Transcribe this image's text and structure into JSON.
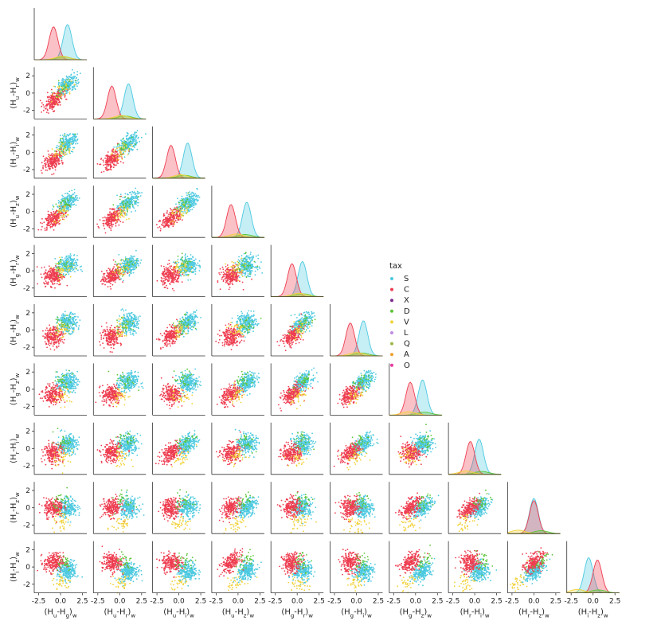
{
  "chart_data": {
    "type": "scatter",
    "kind": "pairplot-corner",
    "diagonal": "kde",
    "variables": [
      {
        "label": "(H_u-H_g)_w",
        "base": "(H",
        "sub1": "u",
        "mid": "-H",
        "sub2": "g",
        "tail": ")",
        "suffix": "w"
      },
      {
        "label": "(H_u-H_r)_w",
        "base": "(H",
        "sub1": "u",
        "mid": "-H",
        "sub2": "r",
        "tail": ")",
        "suffix": "w"
      },
      {
        "label": "(H_u-H_i)_w",
        "base": "(H",
        "sub1": "u",
        "mid": "-H",
        "sub2": "i",
        "tail": ")",
        "suffix": "w"
      },
      {
        "label": "(H_u-H_z)_w",
        "base": "(H",
        "sub1": "u",
        "mid": "-H",
        "sub2": "z",
        "tail": ")",
        "suffix": "w"
      },
      {
        "label": "(H_g-H_r)_w",
        "base": "(H",
        "sub1": "g",
        "mid": "-H",
        "sub2": "r",
        "tail": ")",
        "suffix": "w"
      },
      {
        "label": "(H_g-H_i)_w",
        "base": "(H",
        "sub1": "g",
        "mid": "-H",
        "sub2": "i",
        "tail": ")",
        "suffix": "w"
      },
      {
        "label": "(H_g-H_z)_w",
        "base": "(H",
        "sub1": "g",
        "mid": "-H",
        "sub2": "z",
        "tail": ")",
        "suffix": "w"
      },
      {
        "label": "(H_r-H_i)_w",
        "base": "(H",
        "sub1": "r",
        "mid": "-H",
        "sub2": "i",
        "tail": ")",
        "suffix": "w"
      },
      {
        "label": "(H_r-H_z)_w",
        "base": "(H",
        "sub1": "r",
        "mid": "-H",
        "sub2": "z",
        "tail": ")",
        "suffix": "w"
      },
      {
        "label": "(H_i-H_z)_w",
        "base": "(H",
        "sub1": "i",
        "mid": "-H",
        "sub2": "z",
        "tail": ")",
        "suffix": "w"
      }
    ],
    "axis_range": [
      -3,
      3
    ],
    "x_ticks": [
      "-2.5",
      "0.0",
      "2.5"
    ],
    "y_ticks": [
      "2",
      "0",
      "-2"
    ],
    "y_tick_values": [
      2,
      0,
      -2
    ],
    "x_tick_values": [
      -2.5,
      0.0,
      2.5
    ],
    "grid": false,
    "legend": {
      "title": "tax",
      "placement": "center-right",
      "entries": [
        {
          "name": "S",
          "color": "#4cc9e0"
        },
        {
          "name": "C",
          "color": "#ee3d50"
        },
        {
          "name": "X",
          "color": "#7b2d8e"
        },
        {
          "name": "D",
          "color": "#5cc63a"
        },
        {
          "name": "V",
          "color": "#f2d23a"
        },
        {
          "name": "L",
          "color": "#c08be0"
        },
        {
          "name": "Q",
          "color": "#9cb84a"
        },
        {
          "name": "A",
          "color": "#f0a030"
        },
        {
          "name": "O",
          "color": "#e83aa0"
        }
      ]
    },
    "groups": [
      {
        "name": "S",
        "mean": [
          0.8,
          1.0,
          1.0,
          1.0,
          0.6,
          0.8,
          0.8,
          0.5,
          0.0,
          -0.5
        ],
        "weight": 0.45
      },
      {
        "name": "C",
        "mean": [
          -0.8,
          -0.9,
          -0.9,
          -0.8,
          -0.6,
          -0.7,
          -0.6,
          -0.5,
          0.0,
          0.5
        ],
        "weight": 0.42
      },
      {
        "name": "D",
        "mean": [
          0.3,
          0.6,
          0.6,
          0.8,
          0.6,
          0.6,
          1.0,
          0.8,
          0.8,
          0.6
        ],
        "weight": 0.06
      },
      {
        "name": "V",
        "mean": [
          0.2,
          0.2,
          0.2,
          -0.2,
          0.2,
          0.0,
          -0.8,
          -1.0,
          -1.8,
          -1.8
        ],
        "weight": 0.07
      }
    ]
  }
}
